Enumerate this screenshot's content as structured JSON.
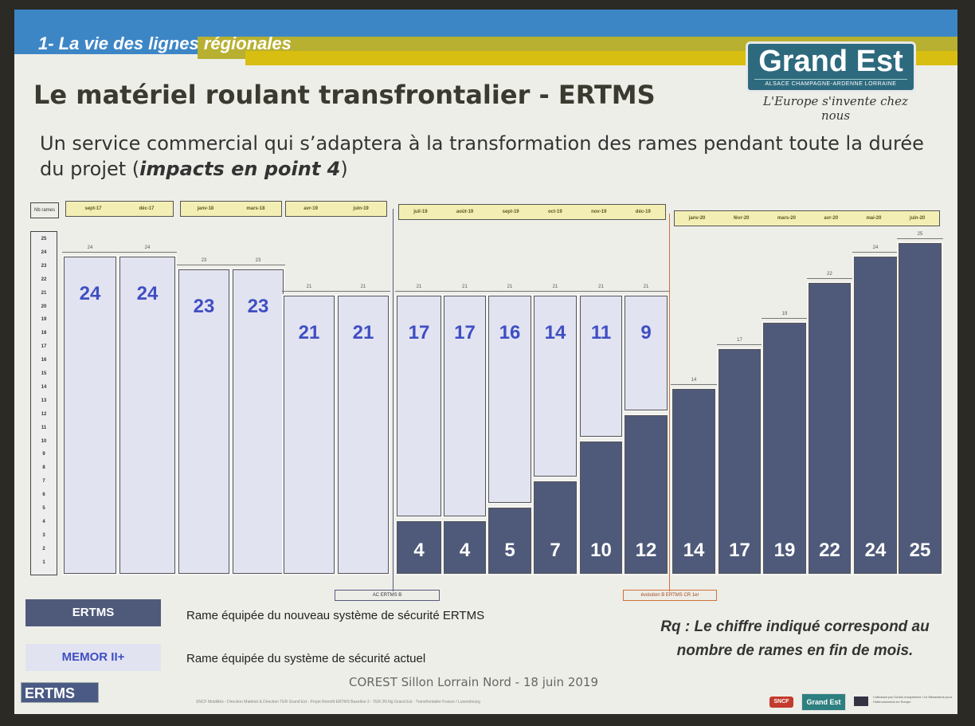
{
  "header": {
    "section": "1- La vie des lignes régionales",
    "title": "Le matériel roulant transfrontalier - ERTMS",
    "subtitle_main": "Un service commercial qui s’adaptera à la transformation des rames pendant toute la durée du projet (",
    "subtitle_em": "impacts en point 4",
    "subtitle_end": ")"
  },
  "logo": {
    "name": "Grand Est",
    "sub": "ALSACE CHAMPAGNE-ARDENNE LORRAINE",
    "slogan": "L'Europe s'invente chez nous"
  },
  "colors": {
    "ertms": "#4f5a7a",
    "memor": "#e2e3f1",
    "memor_text": "#3f4fc2",
    "header_blue": "#3d86c6",
    "header_yellow": "#d9be12",
    "month_bg": "#f3efb4",
    "marker_blue": "#555a80",
    "marker_orange": "#d0703a"
  },
  "chart_data": {
    "type": "bar",
    "stacked": true,
    "title": "Le matériel roulant transfrontalier - ERTMS",
    "xlabel": "",
    "ylabel": "Nb rames",
    "ylim": [
      0,
      25
    ],
    "yticks": [
      25,
      24,
      23,
      22,
      21,
      20,
      19,
      18,
      17,
      16,
      15,
      14,
      13,
      12,
      11,
      10,
      9,
      8,
      7,
      6,
      5,
      4,
      3,
      2,
      1
    ],
    "grid": false,
    "legend_position": "bottom",
    "categories": [
      "sept-17",
      "déc-17",
      "janv-18",
      "mars-18",
      "avr-19",
      "juin-19",
      "juil-19",
      "août-19",
      "sept-19",
      "oct-19",
      "nov-19",
      "déc-19",
      "janv-20",
      "févr-20",
      "mars-20",
      "avr-20",
      "mai-20",
      "juin-20"
    ],
    "month_groups": [
      [
        "sept-17",
        "déc-17"
      ],
      [
        "janv-18",
        "mars-18"
      ],
      [
        "avr-19",
        "juin-19"
      ],
      [
        "juil-19",
        "août-19",
        "sept-19",
        "oct-19",
        "nov-19",
        "déc-19"
      ],
      [
        "janv-20",
        "févr-20",
        "mars-20",
        "avr-20",
        "mai-20",
        "juin-20"
      ]
    ],
    "series": [
      {
        "name": "ERTMS",
        "values": [
          0,
          0,
          0,
          0,
          0,
          0,
          4,
          4,
          5,
          7,
          10,
          12,
          14,
          17,
          19,
          22,
          24,
          25
        ]
      },
      {
        "name": "MEMOR II+",
        "values": [
          24,
          24,
          23,
          23,
          21,
          21,
          17,
          17,
          16,
          14,
          11,
          9,
          0,
          0,
          0,
          0,
          0,
          0
        ]
      }
    ],
    "totals": [
      24,
      24,
      23,
      23,
      21,
      21,
      21,
      21,
      21,
      21,
      21,
      21,
      14,
      17,
      19,
      22,
      24,
      25
    ],
    "annotations": [
      {
        "label": "AC ERTMS B",
        "after_category": "juin-19"
      },
      {
        "label": "évolution B ERTMS CR 1er",
        "after_category": "déc-19"
      }
    ]
  },
  "axis": {
    "nb_label": "Nb rames"
  },
  "legend": {
    "ertms_label": "ERTMS",
    "ertms_desc": "Rame équipée du nouveau système de sécurité ERTMS",
    "memor_label": "MEMOR II+",
    "memor_desc": "Rame équipée du système de sécurité actuel"
  },
  "note": {
    "line1": "Rq : Le chiffre indiqué correspond au",
    "line2": "nombre de rames en fin de mois."
  },
  "footer": {
    "event": "COREST Sillon Lorrain Nord - 18 juin 2019",
    "small": "SNCF Mobilités - Direction Matériel & Direction TER Grand Est - Projet Retrofit ERTMS Baseline 3 - TER 2N Ng Grand Est - Transfrontalier France / Luxembourg",
    "ertms_logo": "ERTMS",
    "sncf": "SNCF",
    "grandest_small": "Grand Est",
    "eu_text": "Cofinancé par l'Union européenne / Le Mécanisme pour l'Interconnexion en Europe"
  }
}
